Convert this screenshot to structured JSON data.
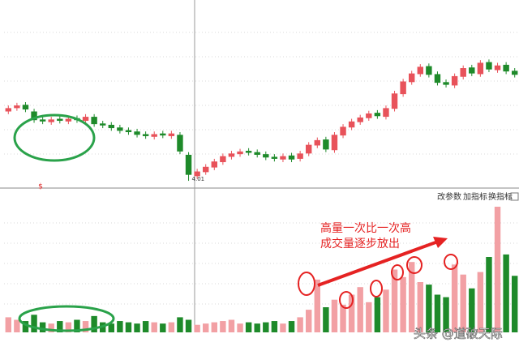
{
  "chart_data": [
    {
      "type": "candlestick",
      "up_color": "#e8525a",
      "down_color": "#1e8a2a",
      "ylim": [
        3.95,
        6.6
      ],
      "open": [
        5.05,
        5.1,
        5.15,
        5.05,
        4.93,
        4.89,
        4.94,
        4.9,
        4.95,
        4.91,
        4.97,
        4.87,
        4.85,
        4.81,
        4.77,
        4.75,
        4.71,
        4.67,
        4.72,
        4.68,
        4.7,
        4.4,
        4.08,
        4.14,
        4.21,
        4.29,
        4.37,
        4.41,
        4.46,
        4.44,
        4.41,
        4.37,
        4.33,
        4.39,
        4.34,
        4.42,
        4.54,
        4.63,
        4.47,
        4.69,
        4.81,
        4.89,
        4.95,
        5.03,
        4.97,
        5.09,
        5.31,
        5.49,
        5.61,
        5.73,
        5.61,
        5.49,
        5.44,
        5.57,
        5.71,
        5.61,
        5.79,
        5.67,
        5.75,
        5.66
      ],
      "close": [
        5.1,
        5.14,
        5.08,
        4.92,
        4.9,
        4.93,
        4.91,
        4.94,
        4.92,
        4.97,
        4.86,
        4.84,
        4.8,
        4.76,
        4.74,
        4.7,
        4.68,
        4.71,
        4.69,
        4.72,
        4.45,
        4.1,
        4.15,
        4.22,
        4.3,
        4.38,
        4.42,
        4.45,
        4.43,
        4.4,
        4.36,
        4.34,
        4.38,
        4.33,
        4.42,
        4.55,
        4.62,
        4.48,
        4.7,
        4.82,
        4.9,
        4.96,
        5.02,
        4.98,
        5.1,
        5.32,
        5.5,
        5.62,
        5.72,
        5.6,
        5.48,
        5.45,
        5.58,
        5.7,
        5.62,
        5.78,
        5.68,
        5.74,
        5.65,
        5.6
      ],
      "high": [
        5.14,
        5.18,
        5.19,
        5.09,
        4.97,
        4.97,
        4.98,
        4.98,
        4.99,
        5.01,
        5.01,
        4.91,
        4.89,
        4.85,
        4.81,
        4.79,
        4.75,
        4.75,
        4.76,
        4.76,
        4.74,
        4.44,
        4.19,
        4.26,
        4.34,
        4.42,
        4.46,
        4.49,
        4.5,
        4.48,
        4.45,
        4.41,
        4.42,
        4.43,
        4.46,
        4.59,
        4.66,
        4.67,
        4.74,
        4.86,
        4.94,
        5.0,
        5.06,
        5.07,
        5.14,
        5.36,
        5.54,
        5.66,
        5.76,
        5.77,
        5.65,
        5.53,
        5.62,
        5.74,
        5.75,
        5.82,
        5.83,
        5.78,
        5.79,
        5.7
      ],
      "low": [
        5.01,
        5.06,
        5.04,
        4.88,
        4.86,
        4.85,
        4.87,
        4.86,
        4.88,
        4.87,
        4.82,
        4.8,
        4.76,
        4.72,
        4.7,
        4.66,
        4.64,
        4.63,
        4.65,
        4.64,
        4.41,
        4.01,
        4.04,
        4.1,
        4.17,
        4.25,
        4.33,
        4.37,
        4.39,
        4.36,
        4.32,
        4.3,
        4.29,
        4.29,
        4.3,
        4.38,
        4.5,
        4.44,
        4.43,
        4.65,
        4.77,
        4.85,
        4.91,
        4.94,
        4.93,
        5.05,
        5.27,
        5.45,
        5.57,
        5.56,
        5.44,
        5.41,
        5.4,
        5.53,
        5.58,
        5.57,
        5.64,
        5.63,
        5.61,
        5.56
      ],
      "marker": "$"
    },
    {
      "type": "bar",
      "ylim": [
        0,
        100
      ],
      "values": [
        12,
        10,
        9,
        14,
        8,
        7,
        9,
        8,
        10,
        9,
        13,
        8,
        7,
        9,
        8,
        7,
        9,
        8,
        7,
        8,
        12,
        10,
        6,
        7,
        8,
        9,
        10,
        7,
        8,
        7,
        8,
        9,
        7,
        9,
        12,
        18,
        42,
        20,
        26,
        22,
        30,
        36,
        24,
        28,
        34,
        50,
        44,
        56,
        40,
        38,
        30,
        28,
        54,
        46,
        35,
        48,
        60,
        100,
        62,
        45
      ]
    }
  ],
  "toolbar": [
    "改参数",
    "加指标",
    "换指标"
  ],
  "annotations": [
    "高量一次比一次高",
    "成交量逐步放出"
  ],
  "watermark": "头条 @道破天际"
}
